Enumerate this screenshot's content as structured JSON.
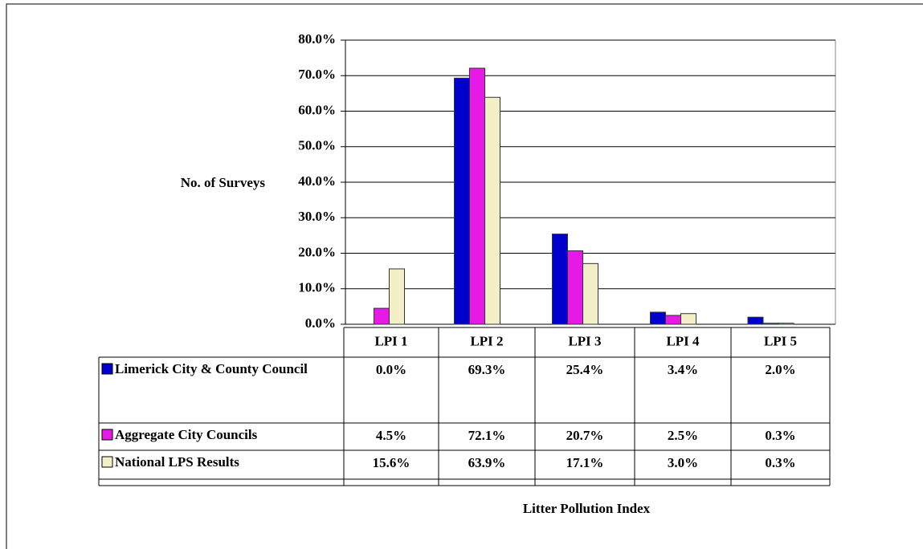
{
  "chart_data": {
    "type": "bar",
    "y_label": "No. of Surveys",
    "x_label": "Litter Pollution Index",
    "categories": [
      "LPI 1",
      "LPI 2",
      "LPI 3",
      "LPI 4",
      "LPI 5"
    ],
    "series": [
      {
        "name": "Limerick City & County Council",
        "color": "#0000cc",
        "values": [
          0.0,
          69.3,
          25.4,
          3.4,
          2.0
        ],
        "value_labels": [
          "0.0%",
          "69.3%",
          "25.4%",
          "3.4%",
          "2.0%"
        ]
      },
      {
        "name": "Aggregate City Councils",
        "color": "#e619e6",
        "values": [
          4.5,
          72.1,
          20.7,
          2.5,
          0.3
        ],
        "value_labels": [
          "4.5%",
          "72.1%",
          "20.7%",
          "2.5%",
          "0.3%"
        ]
      },
      {
        "name": "National LPS Results",
        "color": "#f3efc6",
        "values": [
          15.6,
          63.9,
          17.1,
          3.0,
          0.3
        ],
        "value_labels": [
          "15.6%",
          "63.9%",
          "17.1%",
          "3.0%",
          "0.3%"
        ]
      }
    ],
    "ylim": [
      0,
      80
    ],
    "yticks": [
      {
        "value": 0,
        "label": "0.0%"
      },
      {
        "value": 10,
        "label": "10.0%"
      },
      {
        "value": 20,
        "label": "20.0%"
      },
      {
        "value": 30,
        "label": "30.0%"
      },
      {
        "value": 40,
        "label": "40.0%"
      },
      {
        "value": 50,
        "label": "50.0%"
      },
      {
        "value": 60,
        "label": "60.0%"
      },
      {
        "value": 70,
        "label": "70.0%"
      },
      {
        "value": 80,
        "label": "80.0%"
      }
    ],
    "grid": true
  }
}
